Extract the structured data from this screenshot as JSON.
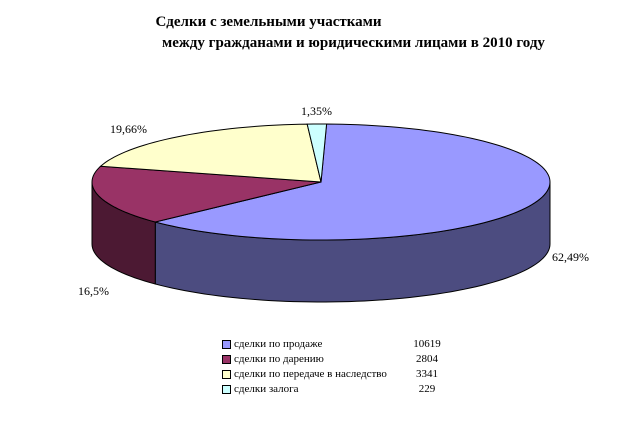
{
  "chart_data": {
    "type": "pie",
    "style": "3d",
    "title_lines": [
      "Сделки  с земельными участками",
      "между гражданами  и юридическими лицами в 2010 году"
    ],
    "legend_placement": "bottom",
    "slices": [
      {
        "label": "сделки по продаже",
        "value": "10619",
        "percent": 62.49,
        "percent_label": "62,49%",
        "color": "#9999ff",
        "side_color": "#4c4c80"
      },
      {
        "label": "сделки по дарению",
        "value": "2804",
        "percent": 16.5,
        "percent_label": "16,5%",
        "color": "#993366",
        "side_color": "#4c1933"
      },
      {
        "label": "сделки по передаче в наследство",
        "value": "3341",
        "percent": 19.66,
        "percent_label": "19,66%",
        "color": "#ffffcc",
        "side_color": "#808066"
      },
      {
        "label": "сделки залога",
        "value": "229",
        "percent": 1.35,
        "percent_label": "1,35%",
        "color": "#ccffff",
        "side_color": "#668080"
      }
    ]
  }
}
